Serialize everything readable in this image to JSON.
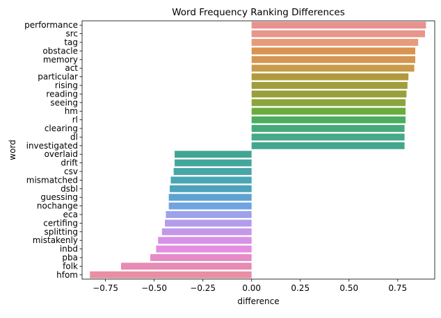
{
  "chart_data": {
    "type": "bar",
    "orientation": "horizontal",
    "title": "Word Frequency Ranking Differences",
    "xlabel": "difference",
    "ylabel": "word",
    "xlim": [
      -0.87,
      0.94
    ],
    "xticks": [
      -0.75,
      -0.5,
      -0.25,
      0.0,
      0.25,
      0.5,
      0.75
    ],
    "xtick_labels": [
      "−0.75",
      "−0.50",
      "−0.25",
      "0.00",
      "0.25",
      "0.50",
      "0.75"
    ],
    "grid": false,
    "categories": [
      "performance",
      "src",
      "tag",
      "obstacle",
      "memory",
      "act",
      "particular",
      "rising",
      "reading",
      "seeing",
      "hm",
      "rl",
      "clearing",
      "dl",
      "investigated",
      "overlaid",
      "drift",
      "csv",
      "mismatched",
      "dsbl",
      "guessing",
      "nochange",
      "eca",
      "certifing",
      "splitting",
      "mistakenly",
      "inbd",
      "pba",
      "folk",
      "hfom"
    ],
    "values": [
      0.895,
      0.89,
      0.855,
      0.84,
      0.84,
      0.835,
      0.805,
      0.8,
      0.795,
      0.79,
      0.79,
      0.79,
      0.785,
      0.785,
      0.785,
      -0.395,
      -0.395,
      -0.4,
      -0.415,
      -0.42,
      -0.425,
      -0.425,
      -0.44,
      -0.445,
      -0.46,
      -0.48,
      -0.49,
      -0.52,
      -0.67,
      -0.83
    ],
    "colors": [
      "#e8918e",
      "#e8958a",
      "#e69b79",
      "#d99450",
      "#d49650",
      "#c99c4a",
      "#b09a3d",
      "#a39e3d",
      "#999f3d",
      "#8ba53d",
      "#6aac3d",
      "#4dad5f",
      "#46aa7a",
      "#46a988",
      "#43a68d",
      "#42a594",
      "#43a69d",
      "#46a6a8",
      "#4aa6b3",
      "#4da3bb",
      "#5da3d1",
      "#6fa4e0",
      "#9ea2e9",
      "#b39ceb",
      "#c498e8",
      "#d791e6",
      "#e58de0",
      "#e68bc6",
      "#e68cb4",
      "#e88fa5"
    ]
  }
}
